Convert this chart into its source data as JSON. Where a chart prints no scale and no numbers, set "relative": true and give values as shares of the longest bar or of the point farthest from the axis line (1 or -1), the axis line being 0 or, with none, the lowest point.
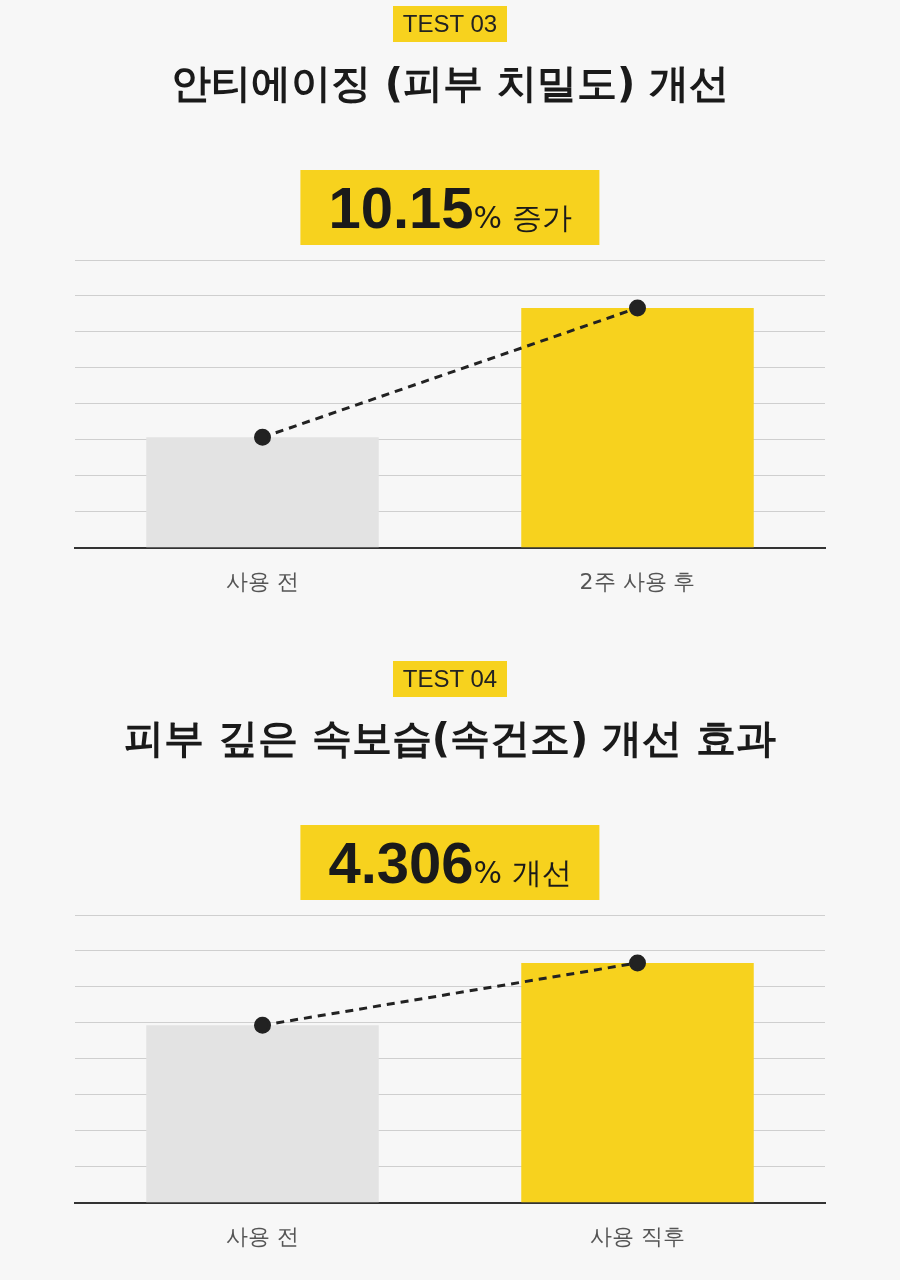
{
  "chart_data": [
    {
      "type": "bar",
      "subtitle": "TEST 03",
      "title": "안티에이징 (피부 치밀도) 개선",
      "categories": [
        "사용 전",
        "2주 사용 후"
      ],
      "relative": true,
      "grid": "y",
      "annotations": [
        "10.15% 증가"
      ],
      "series": [
        {
          "colors": [
            "#e3e3e3",
            "#f7d21e"
          ],
          "values": [
            0.46,
            1
          ]
        },
        {
          "type": "line",
          "color": "#222222",
          "values": [
            0.46,
            1
          ],
          "marker": "circle",
          "line_style": "dashed"
        }
      ]
    },
    {
      "type": "bar",
      "subtitle": "TEST 04",
      "title": "피부 깊은 속보습(속건조) 개선 효과",
      "categories": [
        "사용 전",
        "사용 직후"
      ],
      "relative": true,
      "grid": "y",
      "annotations": [
        "4.306% 개선"
      ],
      "series": [
        {
          "colors": [
            "#e3e3e3",
            "#f7d21e"
          ],
          "values": [
            0.74,
            1
          ]
        },
        {
          "type": "line",
          "color": "#222222",
          "values": [
            0.74,
            1
          ],
          "marker": "circle",
          "line_style": "dashed"
        }
      ]
    }
  ]
}
